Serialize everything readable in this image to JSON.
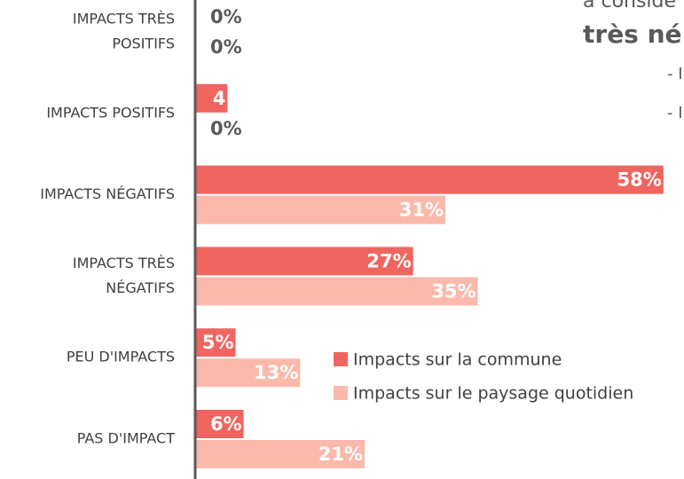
{
  "chart_data": {
    "type": "bar",
    "orientation": "horizontal",
    "annotations": [
      "a considé",
      "très né",
      "- I",
      "- I"
    ],
    "categories": [
      [
        "IMPACTS TRÈS",
        "POSITIFS"
      ],
      [
        "IMPACTS POSITIFS"
      ],
      [
        "IMPACTS NÉGATIFS"
      ],
      [
        "IMPACTS TRÈS",
        "NÉGATIFS"
      ],
      [
        "PEU D'IMPACTS"
      ],
      [
        "PAS D'IMPACT"
      ]
    ],
    "series": [
      {
        "name": "Impacts sur la commune",
        "color": "#f0655f",
        "values": [
          0,
          4,
          58,
          27,
          5,
          6
        ],
        "value_labels": [
          "0%",
          "4",
          "58%",
          "27%",
          "5%",
          "6%"
        ]
      },
      {
        "name": "Impacts sur le paysage quotidien",
        "color": "#fbb9ab",
        "values": [
          0,
          0,
          31,
          35,
          13,
          21
        ],
        "value_labels": [
          "0%",
          "0%",
          "31%",
          "35%",
          "13%",
          "21%"
        ]
      }
    ]
  }
}
